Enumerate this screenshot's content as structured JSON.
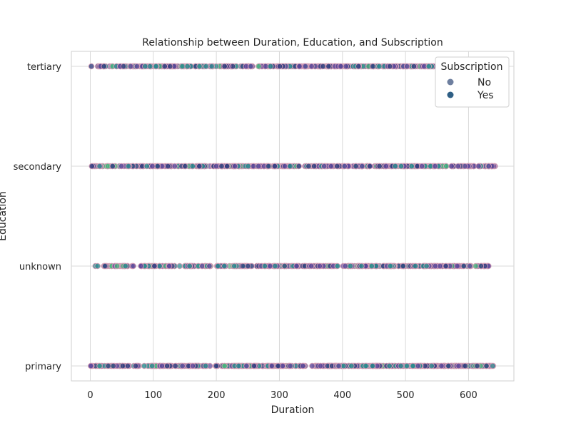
{
  "chart_data": {
    "type": "scatter",
    "title": "Relationship between Duration, Education, and Subscription",
    "xlabel": "Duration",
    "ylabel": "Education",
    "xlim": [
      -30,
      672
    ],
    "x_ticks": [
      0,
      100,
      200,
      300,
      400,
      500,
      600
    ],
    "categories": [
      "tertiary",
      "secondary",
      "unknown",
      "primary"
    ],
    "grid": true,
    "legend": {
      "title": "Subscription",
      "placement": "top-right",
      "items": [
        {
          "label": "No",
          "color": "#6e7f9f"
        },
        {
          "label": "Yes",
          "color": "#2f5f85"
        }
      ]
    },
    "series": [
      {
        "name": "No",
        "color": "#6e7f9f",
        "rows": [
          {
            "category": "tertiary",
            "x_min": 0,
            "x_max": 610,
            "count": 290
          },
          {
            "category": "secondary",
            "x_min": 0,
            "x_max": 643,
            "count": 310
          },
          {
            "category": "unknown",
            "x_min": 0,
            "x_max": 632,
            "count": 280
          },
          {
            "category": "primary",
            "x_min": 0,
            "x_max": 643,
            "count": 310
          }
        ]
      },
      {
        "name": "Yes",
        "color": "#2f5f85",
        "rows": [
          {
            "category": "tertiary",
            "x_min": 0,
            "x_max": 610,
            "count": 110
          },
          {
            "category": "secondary",
            "x_min": 0,
            "x_max": 643,
            "count": 115
          },
          {
            "category": "unknown",
            "x_min": 0,
            "x_max": 632,
            "count": 105
          },
          {
            "category": "primary",
            "x_min": 0,
            "x_max": 643,
            "count": 115
          }
        ]
      }
    ],
    "marker_palette": {
      "purple": "#5f4a9b",
      "navy": "#33407f",
      "teal": "#2a8a8f",
      "green": "#45b87d",
      "pink_edge": "#d7a2b8"
    }
  }
}
